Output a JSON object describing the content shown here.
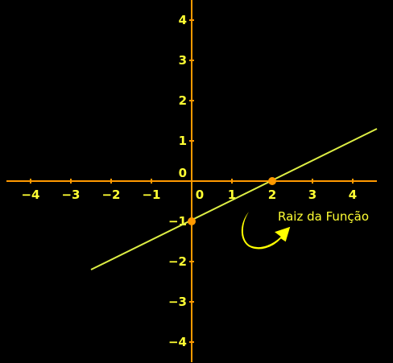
{
  "chart_data": {
    "type": "line",
    "title": "",
    "xlabel": "",
    "ylabel": "",
    "xlim": [
      -4.6,
      4.6
    ],
    "ylim": [
      -4.5,
      4.5
    ],
    "x_ticks": [
      "−4",
      "−3",
      "−2",
      "−1",
      "0",
      "1",
      "2",
      "3",
      "4"
    ],
    "y_ticks": [
      "4",
      "3",
      "2",
      "1",
      "0",
      "−1",
      "−2",
      "−3",
      "−4"
    ],
    "grid": false,
    "series": [
      {
        "x": [
          -2.5,
          4.6
        ],
        "y": [
          -2.2,
          1.3
        ]
      }
    ],
    "points": [
      {
        "x": 0,
        "y": -1
      },
      {
        "x": 2,
        "y": 0
      }
    ],
    "annotation": "Raiz da Função"
  },
  "colors": {
    "background": "#000000",
    "axes": "#ff9900",
    "tick_labels": "#ffff33",
    "line": "#ddee44",
    "points": "#ff9900",
    "annotation_text": "#ffff33",
    "arrow": "#ffff00"
  },
  "icons": {
    "annotation_arrow": "curved-arrow-icon"
  }
}
